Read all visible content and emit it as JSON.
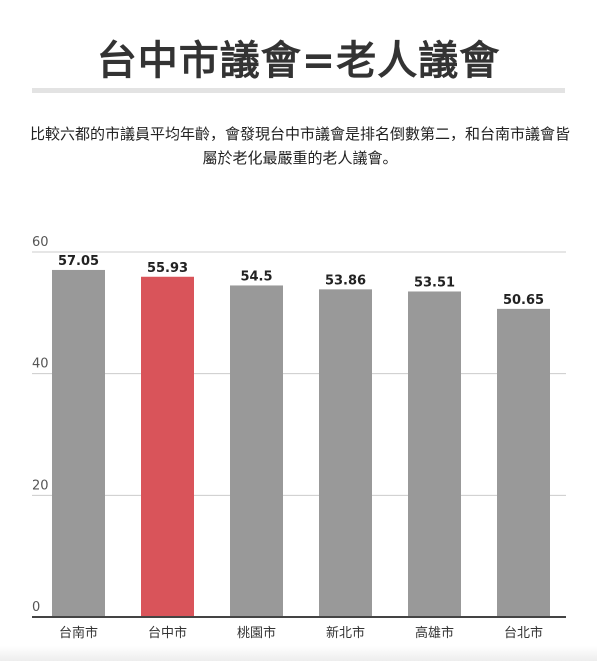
{
  "header": {
    "title": "台中市議會=老人議會",
    "subtitle": "比較六都的市議員平均年齡，會發現台中市議會是排名倒數第二，和台南市議會皆屬於老化最嚴重的老人議會。"
  },
  "colors": {
    "bar_default": "#999999",
    "bar_highlight": "#d9545a",
    "grid": "#cccccc",
    "axis": "#444444"
  },
  "chart_data": {
    "type": "bar",
    "categories": [
      "台南市",
      "台中市",
      "桃園市",
      "新北市",
      "高雄市",
      "台北市"
    ],
    "values": [
      57.05,
      55.93,
      54.5,
      53.86,
      53.51,
      50.65
    ],
    "value_labels": [
      "57.05",
      "55.93",
      "54.5",
      "53.86",
      "53.51",
      "50.65"
    ],
    "highlight_index": 1,
    "ylim": [
      0,
      60
    ],
    "yticks": [
      "0",
      "20",
      "40",
      "60"
    ],
    "grid": true,
    "title": "",
    "xlabel": "",
    "ylabel": ""
  }
}
